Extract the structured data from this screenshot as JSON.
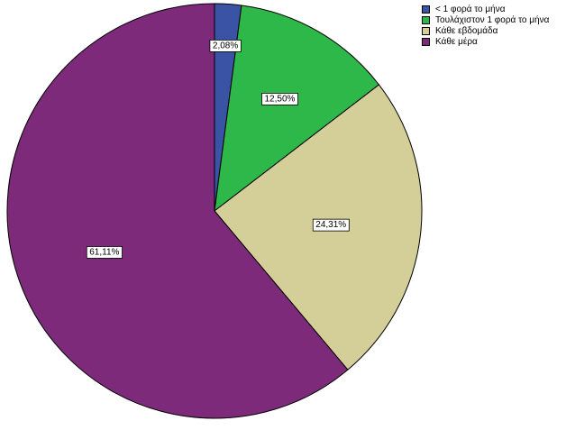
{
  "chart_data": {
    "type": "pie",
    "title": "",
    "categories": [
      "< 1 φορά το μήνα",
      "Τουλάχιστον 1 φορά το μήνα",
      "Κάθε εβδομάδα",
      "Κάθε μέρα"
    ],
    "values": [
      2.08,
      12.5,
      24.31,
      61.11
    ],
    "labels": [
      "2,08%",
      "12,50%",
      "24,31%",
      "61,11%"
    ],
    "colors": [
      "#3a53a4",
      "#2eb84a",
      "#d4cf98",
      "#7e2a7b"
    ],
    "legend_position": "top-right",
    "start_angle_deg": 0,
    "direction": "clockwise"
  }
}
